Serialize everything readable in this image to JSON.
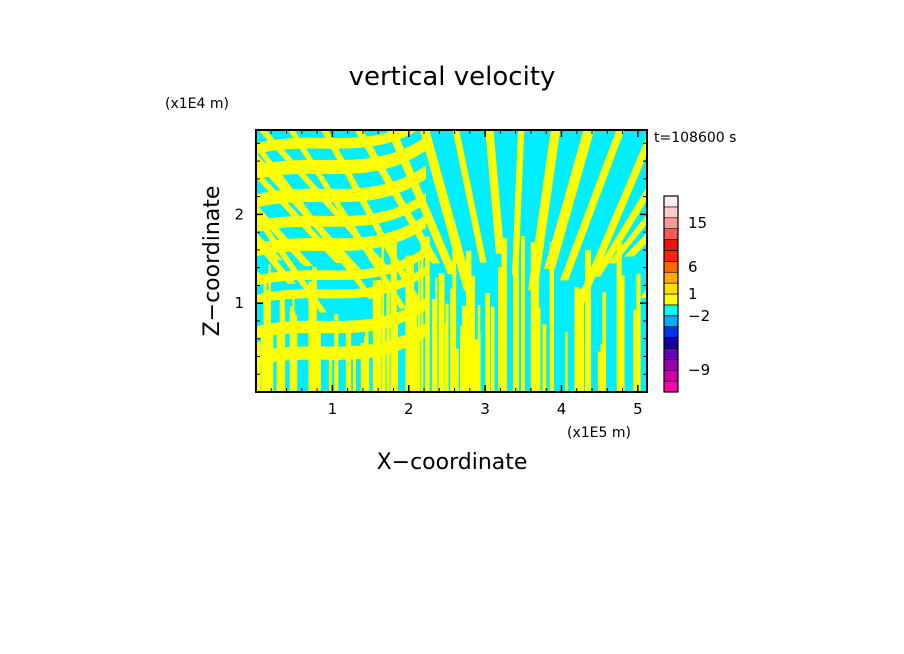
{
  "chart_data": {
    "type": "heatmap",
    "title": "vertical velocity",
    "xlabel": "X−coordinate",
    "ylabel": "Z−coordinate",
    "x_unit": "(x1E5 m)",
    "y_unit": "(x1E4 m)",
    "time_label": "t=108600 s",
    "xlim": [
      0,
      5.12
    ],
    "ylim": [
      0,
      2.95
    ],
    "x_ticks": [
      {
        "value": 1,
        "label": "1"
      },
      {
        "value": 2,
        "label": "2"
      },
      {
        "value": 3,
        "label": "3"
      },
      {
        "value": 4,
        "label": "4"
      },
      {
        "value": 5,
        "label": "5"
      }
    ],
    "y_ticks": [
      {
        "value": 1,
        "label": "1"
      },
      {
        "value": 2,
        "label": "2"
      }
    ],
    "field_colors": {
      "negative": "#00eeff",
      "positive": "#ffff00"
    },
    "colorbar": {
      "levels": [
        {
          "color": "#ff00aa"
        },
        {
          "color": "#cc00aa"
        },
        {
          "color": "#9900aa"
        },
        {
          "color": "#6600bb"
        },
        {
          "color": "#1100aa"
        },
        {
          "color": "#0033ee"
        },
        {
          "color": "#00aaff"
        },
        {
          "color": "#00ffff"
        },
        {
          "color": "#ffff00"
        },
        {
          "color": "#ffdd00"
        },
        {
          "color": "#ffaa00"
        },
        {
          "color": "#ff6600"
        },
        {
          "color": "#ff2200"
        },
        {
          "color": "#ee1111"
        },
        {
          "color": "#ff5555"
        },
        {
          "color": "#ff9999"
        },
        {
          "color": "#ffcccc"
        },
        {
          "color": "#fff0f0"
        }
      ],
      "labels": [
        {
          "text": "15",
          "level": 15.5
        },
        {
          "text": "6",
          "level": 11.5
        },
        {
          "text": "1",
          "level": 9
        },
        {
          "text": "−2",
          "level": 7
        },
        {
          "text": "−9",
          "level": 2
        }
      ]
    }
  }
}
